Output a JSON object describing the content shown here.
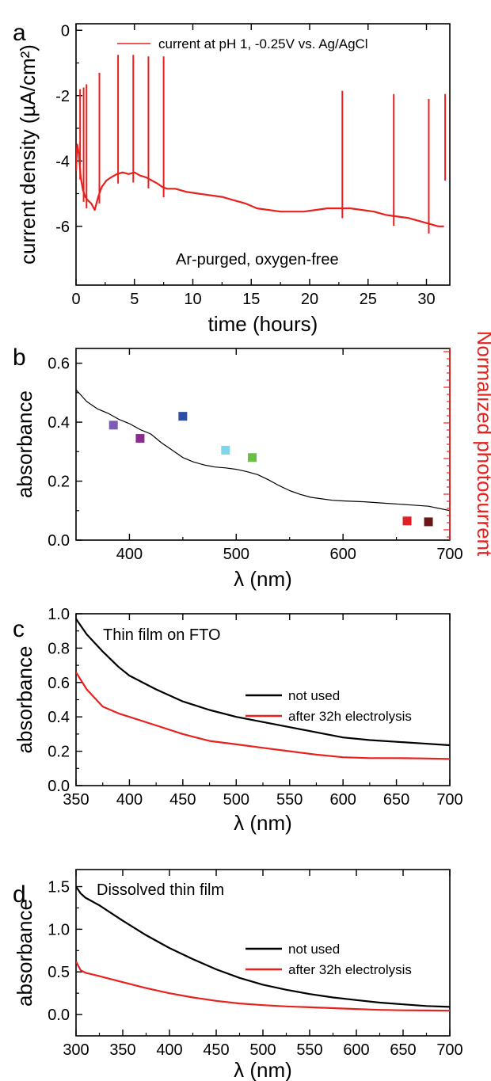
{
  "colors": {
    "red": "#e8211e",
    "black": "#000000",
    "marker_violet": "#7a5cb5",
    "marker_purple": "#8a2c8e",
    "marker_blue": "#2d4ea6",
    "marker_cyan": "#7ed6ec",
    "marker_green": "#6cbf45",
    "marker_red": "#e01f26",
    "marker_darkred": "#6b1515"
  },
  "chart_data": [
    {
      "panel": "a",
      "type": "line",
      "xlabel": "time (hours)",
      "ylabel": "current density (µA/cm²)",
      "xlim": [
        0,
        32
      ],
      "ylim": [
        -7.8,
        0.2
      ],
      "xticks": [
        0,
        5,
        10,
        15,
        20,
        25,
        30
      ],
      "yticks": [
        0,
        -2,
        -4,
        -6
      ],
      "annotation": "Ar-purged, oxygen-free",
      "legend_position": "top-right",
      "series": [
        {
          "name": "current at pH 1, -0.25V vs. Ag/AgCl",
          "color": "#e8211e",
          "x": [
            0,
            0.1,
            0.25,
            0.4,
            0.6,
            0.8,
            1.0,
            1.3,
            1.6,
            1.9,
            2.2,
            2.6,
            3.0,
            3.5,
            4.0,
            4.5,
            5.0,
            5.5,
            6.0,
            6.5,
            7.0,
            7.4,
            7.8,
            8.5,
            9.5,
            10.5,
            11.5,
            12.5,
            13.5,
            14.5,
            15.5,
            16.5,
            17.5,
            18.5,
            19.5,
            20.5,
            21.5,
            22.5,
            23.5,
            24.5,
            25.5,
            26.5,
            27.5,
            28.5,
            29.5,
            30.5,
            31.0,
            31.5
          ],
          "y": [
            -4.3,
            -3.5,
            -3.8,
            -4.5,
            -4.9,
            -5.1,
            -5.2,
            -5.3,
            -5.5,
            -5.1,
            -4.8,
            -4.6,
            -4.5,
            -4.4,
            -4.35,
            -4.4,
            -4.35,
            -4.45,
            -4.5,
            -4.6,
            -4.7,
            -4.8,
            -4.85,
            -4.85,
            -4.95,
            -5.0,
            -5.05,
            -5.1,
            -5.2,
            -5.3,
            -5.45,
            -5.5,
            -5.55,
            -5.55,
            -5.55,
            -5.5,
            -5.45,
            -5.45,
            -5.45,
            -5.5,
            -5.55,
            -5.65,
            -5.7,
            -5.75,
            -5.85,
            -5.95,
            -6.0,
            -6.0
          ]
        }
      ],
      "spikes": [
        {
          "x": 0.35,
          "top": -1.8
        },
        {
          "x": 0.65,
          "top": -1.75
        },
        {
          "x": 0.9,
          "top": -1.65
        },
        {
          "x": 2.0,
          "top": -1.3
        },
        {
          "x": 3.6,
          "top": -0.75
        },
        {
          "x": 4.9,
          "top": -0.75
        },
        {
          "x": 6.2,
          "top": -0.8
        },
        {
          "x": 7.5,
          "top": -0.8
        },
        {
          "x": 22.8,
          "top": -1.85
        },
        {
          "x": 27.2,
          "top": -1.95
        },
        {
          "x": 30.2,
          "top": -2.1
        },
        {
          "x": 31.6,
          "top": -1.95
        }
      ]
    },
    {
      "panel": "b",
      "type": "scatter",
      "xlabel": "λ (nm)",
      "ylabel": "absorbance",
      "y2label": "Normalized photocurrent",
      "xlim": [
        350,
        700
      ],
      "ylim": [
        0,
        0.65
      ],
      "xticks": [
        400,
        500,
        600,
        700
      ],
      "yticks": [
        0.0,
        0.2,
        0.4,
        0.6
      ],
      "series": [
        {
          "name": "",
          "type": "line",
          "color": "#000000",
          "x": [
            350,
            360,
            370,
            380,
            390,
            400,
            410,
            420,
            430,
            440,
            450,
            460,
            470,
            480,
            490,
            500,
            510,
            520,
            530,
            540,
            550,
            560,
            570,
            580,
            590,
            600,
            620,
            640,
            660,
            680,
            700
          ],
          "y": [
            0.51,
            0.47,
            0.445,
            0.43,
            0.41,
            0.395,
            0.375,
            0.36,
            0.33,
            0.305,
            0.28,
            0.265,
            0.255,
            0.248,
            0.245,
            0.24,
            0.232,
            0.222,
            0.205,
            0.185,
            0.168,
            0.155,
            0.145,
            0.14,
            0.135,
            0.133,
            0.13,
            0.125,
            0.12,
            0.115,
            0.1
          ]
        },
        {
          "name": "",
          "type": "scatter",
          "points": [
            {
              "x": 385,
              "y": 0.39,
              "color": "#7a5cb5"
            },
            {
              "x": 410,
              "y": 0.345,
              "color": "#8a2c8e"
            },
            {
              "x": 450,
              "y": 0.42,
              "color": "#2d4ea6"
            },
            {
              "x": 490,
              "y": 0.305,
              "color": "#7ed6ec"
            },
            {
              "x": 515,
              "y": 0.28,
              "color": "#6cbf45"
            },
            {
              "x": 660,
              "y": 0.065,
              "color": "#e01f26"
            },
            {
              "x": 680,
              "y": 0.062,
              "color": "#6b1515"
            }
          ]
        }
      ]
    },
    {
      "panel": "c",
      "type": "line",
      "xlabel": "λ (nm)",
      "ylabel": "absorbance",
      "xlim": [
        350,
        700
      ],
      "ylim": [
        0,
        1.0
      ],
      "xticks": [
        350,
        400,
        450,
        500,
        550,
        600,
        650,
        700
      ],
      "yticks": [
        0.0,
        0.2,
        0.4,
        0.6,
        0.8,
        1.0
      ],
      "annotation": "Thin film on FTO",
      "legend_position": "center-right",
      "series": [
        {
          "name": "not used",
          "color": "#000000",
          "x": [
            350,
            360,
            375,
            390,
            400,
            425,
            450,
            475,
            500,
            525,
            550,
            575,
            600,
            625,
            650,
            675,
            700
          ],
          "y": [
            0.97,
            0.88,
            0.78,
            0.69,
            0.64,
            0.56,
            0.49,
            0.44,
            0.4,
            0.37,
            0.34,
            0.31,
            0.28,
            0.265,
            0.255,
            0.245,
            0.235
          ]
        },
        {
          "name": "after 32h electrolysis",
          "color": "#e8211e",
          "x": [
            350,
            360,
            375,
            390,
            400,
            425,
            450,
            475,
            500,
            525,
            550,
            575,
            600,
            625,
            650,
            675,
            700
          ],
          "y": [
            0.66,
            0.56,
            0.46,
            0.42,
            0.4,
            0.35,
            0.3,
            0.26,
            0.24,
            0.22,
            0.2,
            0.18,
            0.165,
            0.16,
            0.16,
            0.158,
            0.155
          ]
        }
      ]
    },
    {
      "panel": "d",
      "type": "line",
      "xlabel": "λ (nm)",
      "ylabel": "absorbance",
      "xlim": [
        300,
        700
      ],
      "ylim": [
        -0.25,
        1.7
      ],
      "xticks": [
        300,
        350,
        400,
        450,
        500,
        550,
        600,
        650,
        700
      ],
      "yticks": [
        0.0,
        0.5,
        1.0,
        1.5
      ],
      "annotation": "Dissolved thin film",
      "legend_position": "center-right",
      "series": [
        {
          "name": "not used",
          "color": "#000000",
          "x": [
            300,
            305,
            310,
            325,
            350,
            375,
            400,
            425,
            450,
            475,
            500,
            525,
            550,
            575,
            600,
            625,
            650,
            675,
            700
          ],
          "y": [
            1.5,
            1.42,
            1.37,
            1.28,
            1.1,
            0.93,
            0.78,
            0.65,
            0.53,
            0.43,
            0.35,
            0.29,
            0.24,
            0.2,
            0.17,
            0.14,
            0.12,
            0.1,
            0.09
          ]
        },
        {
          "name": "after 32h electrolysis",
          "color": "#e8211e",
          "x": [
            300,
            305,
            310,
            325,
            350,
            375,
            400,
            425,
            450,
            475,
            500,
            525,
            550,
            575,
            600,
            625,
            650,
            675,
            700
          ],
          "y": [
            0.62,
            0.52,
            0.49,
            0.45,
            0.38,
            0.31,
            0.25,
            0.2,
            0.16,
            0.13,
            0.11,
            0.095,
            0.085,
            0.075,
            0.065,
            0.055,
            0.05,
            0.048,
            0.045
          ]
        }
      ]
    }
  ]
}
